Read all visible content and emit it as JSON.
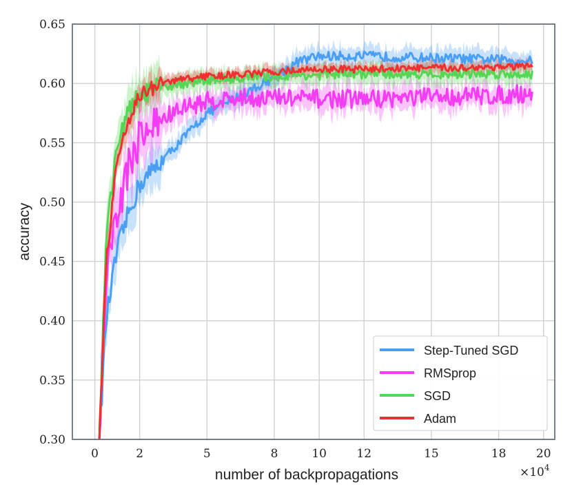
{
  "chart_data": {
    "type": "line",
    "title": "",
    "xlabel": "number of backpropagations",
    "ylabel": "accuracy",
    "x_multiplier_label": "×10",
    "x_multiplier_exp": "4",
    "xlim": [
      -1.0,
      20.5
    ],
    "ylim": [
      0.3,
      0.65
    ],
    "xticks": [
      0,
      2,
      5,
      8,
      10,
      12,
      15,
      18,
      20
    ],
    "xtick_labels": [
      "0",
      "2",
      "5",
      "8",
      "10",
      "12",
      "15",
      "18",
      "20"
    ],
    "yticks": [
      0.3,
      0.35,
      0.4,
      0.45,
      0.5,
      0.55,
      0.6,
      0.65
    ],
    "ytick_labels": [
      "0.30",
      "0.35",
      "0.40",
      "0.45",
      "0.50",
      "0.55",
      "0.60",
      "0.65"
    ],
    "grid": true,
    "legend_position": "bottom-right",
    "series": [
      {
        "name": "Step-Tuned SGD",
        "color": "#4a9ff5",
        "x": [
          0.2,
          0.5,
          1.0,
          1.5,
          2.0,
          3.0,
          4.0,
          5.0,
          6.0,
          7.0,
          8.0,
          9.0,
          10.0,
          12.0,
          14.0,
          16.0,
          18.0,
          19.5
        ],
        "y": [
          0.3,
          0.4,
          0.46,
          0.49,
          0.515,
          0.535,
          0.555,
          0.575,
          0.585,
          0.595,
          0.605,
          0.618,
          0.623,
          0.623,
          0.622,
          0.621,
          0.62,
          0.619
        ],
        "noise": 0.004,
        "band": 0.008
      },
      {
        "name": "RMSprop",
        "color": "#f53cf5",
        "x": [
          0.2,
          0.5,
          1.0,
          1.5,
          2.0,
          3.0,
          4.0,
          5.0,
          6.0,
          7.0,
          8.0,
          9.0,
          10.0,
          12.0,
          14.0,
          16.0,
          18.0,
          19.5
        ],
        "y": [
          0.3,
          0.44,
          0.49,
          0.53,
          0.555,
          0.57,
          0.58,
          0.585,
          0.587,
          0.588,
          0.588,
          0.587,
          0.587,
          0.587,
          0.588,
          0.589,
          0.59,
          0.592
        ],
        "noise": 0.008,
        "band": 0.01
      },
      {
        "name": "SGD",
        "color": "#55d655",
        "x": [
          0.2,
          0.5,
          1.0,
          1.5,
          2.0,
          3.0,
          4.0,
          5.0,
          6.0,
          7.0,
          8.0,
          9.0,
          10.0,
          12.0,
          14.0,
          16.0,
          18.0,
          19.5
        ],
        "y": [
          0.3,
          0.47,
          0.55,
          0.575,
          0.59,
          0.597,
          0.6,
          0.603,
          0.604,
          0.605,
          0.606,
          0.607,
          0.607,
          0.608,
          0.608,
          0.608,
          0.608,
          0.608
        ],
        "noise": 0.004,
        "band": 0.008
      },
      {
        "name": "Adam",
        "color": "#ee3030",
        "x": [
          0.2,
          0.5,
          1.0,
          1.5,
          2.0,
          3.0,
          4.0,
          5.0,
          6.0,
          7.0,
          8.0,
          9.0,
          10.0,
          12.0,
          14.0,
          16.0,
          18.0,
          19.5
        ],
        "y": [
          0.3,
          0.45,
          0.535,
          0.57,
          0.59,
          0.6,
          0.604,
          0.606,
          0.607,
          0.608,
          0.61,
          0.611,
          0.612,
          0.612,
          0.613,
          0.613,
          0.614,
          0.614
        ],
        "noise": 0.003,
        "band": 0.005
      }
    ]
  }
}
